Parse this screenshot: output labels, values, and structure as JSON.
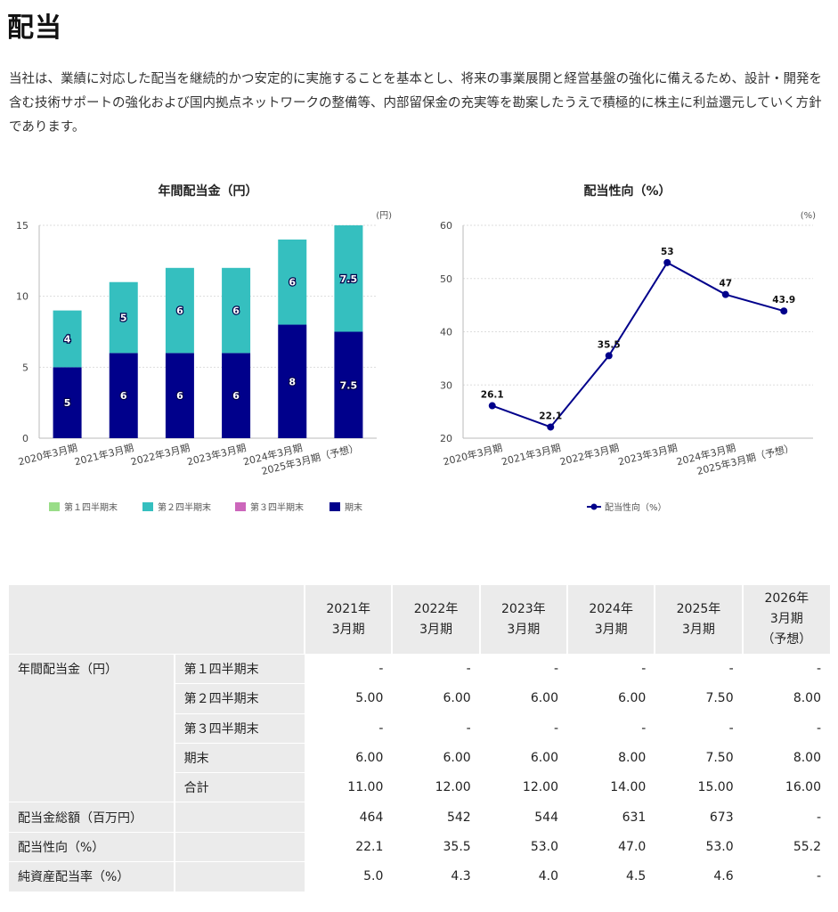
{
  "page": {
    "title": "配当",
    "intro": "当社は、業績に対応した配当を継続的かつ安定的に実施することを基本とし、将来の事業展開と経営基盤の強化に備えるため、設計・開発を含む技術サポートの強化および国内拠点ネットワークの整備等、内部留保金の充実等を勘案したうえで積極的に株主に利益還元していく方針であります。"
  },
  "chart_data": [
    {
      "type": "bar",
      "stacked": true,
      "title": "年間配当金（円）",
      "unit": "(円)",
      "categories": [
        "2020年3月期",
        "2021年3月期",
        "2022年3月期",
        "2023年3月期",
        "2024年3月期",
        "2025年3月期（予想）"
      ],
      "series": [
        {
          "name": "第１四半期末",
          "color": "#99dd88",
          "values": [
            0,
            0,
            0,
            0,
            0,
            0
          ],
          "labels": [
            "",
            "",
            "",
            "",
            "",
            ""
          ]
        },
        {
          "name": "第２四半期末",
          "color": "#35bfbf",
          "values": [
            4,
            5,
            6,
            6,
            6,
            7.5
          ],
          "labels": [
            "4",
            "5",
            "6",
            "6",
            "6",
            "7.5"
          ]
        },
        {
          "name": "第３四半期末",
          "color": "#cc66bb",
          "values": [
            0,
            0,
            0,
            0,
            0,
            0
          ],
          "labels": [
            "",
            "",
            "",
            "",
            "",
            ""
          ]
        },
        {
          "name": "期末",
          "color": "#00008b",
          "values": [
            5,
            6,
            6,
            6,
            8,
            7.5
          ],
          "labels": [
            "5",
            "6",
            "6",
            "6",
            "8",
            "7.5"
          ]
        }
      ],
      "stack_order": [
        3,
        0,
        1,
        2
      ],
      "ylim": [
        0,
        15
      ],
      "yticks": [
        0,
        5,
        10,
        15
      ],
      "grid": true,
      "legend_position": "bottom"
    },
    {
      "type": "line",
      "title": "配当性向（%）",
      "unit": "(%)",
      "categories": [
        "2020年3月期",
        "2021年3月期",
        "2022年3月期",
        "2023年3月期",
        "2024年3月期",
        "2025年3月期（予想）"
      ],
      "series": [
        {
          "name": "配当性向（%）",
          "color": "#00008b",
          "values": [
            26.1,
            22.1,
            35.5,
            53,
            47,
            43.9
          ],
          "labels": [
            "26.1",
            "22.1",
            "35.5",
            "53",
            "47",
            "43.9"
          ]
        }
      ],
      "ylim": [
        20,
        60
      ],
      "yticks": [
        20,
        30,
        40,
        50,
        60
      ],
      "grid": true,
      "legend_position": "bottom"
    }
  ],
  "table": {
    "headers": [
      [
        "2021年",
        "3月期"
      ],
      [
        "2022年",
        "3月期"
      ],
      [
        "2023年",
        "3月期"
      ],
      [
        "2024年",
        "3月期"
      ],
      [
        "2025年",
        "3月期"
      ],
      [
        "2026年",
        "3月期",
        "（予想）"
      ]
    ],
    "groups": [
      {
        "label": "年間配当金（円）",
        "rows": [
          {
            "label": "第１四半期末",
            "values": [
              "-",
              "-",
              "-",
              "-",
              "-",
              "-"
            ]
          },
          {
            "label": "第２四半期末",
            "values": [
              "5.00",
              "6.00",
              "6.00",
              "6.00",
              "7.50",
              "8.00"
            ]
          },
          {
            "label": "第３四半期末",
            "values": [
              "-",
              "-",
              "-",
              "-",
              "-",
              "-"
            ]
          },
          {
            "label": "期末",
            "values": [
              "6.00",
              "6.00",
              "6.00",
              "8.00",
              "7.50",
              "8.00"
            ]
          },
          {
            "label": "合計",
            "values": [
              "11.00",
              "12.00",
              "12.00",
              "14.00",
              "15.00",
              "16.00"
            ]
          }
        ]
      },
      {
        "label": "配当金総額（百万円）",
        "rows": [
          {
            "label": "",
            "values": [
              "464",
              "542",
              "544",
              "631",
              "673",
              "-"
            ]
          }
        ]
      },
      {
        "label": "配当性向（%）",
        "rows": [
          {
            "label": "",
            "values": [
              "22.1",
              "35.5",
              "53.0",
              "47.0",
              "53.0",
              "55.2"
            ]
          }
        ]
      },
      {
        "label": "純資産配当率（%）",
        "rows": [
          {
            "label": "",
            "values": [
              "5.0",
              "4.3",
              "4.0",
              "4.5",
              "4.6",
              "-"
            ]
          }
        ]
      }
    ]
  }
}
